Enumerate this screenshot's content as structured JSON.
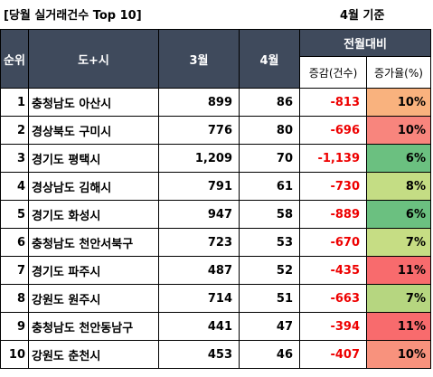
{
  "title": "[당월 실거래건수 Top 10]",
  "basis": "4월 기준",
  "headers": {
    "rank": "순위",
    "region": "도+시",
    "march": "3월",
    "april": "4월",
    "mom_group": "전월대비",
    "change_count": "증감(건수)",
    "change_rate": "증가율(%)"
  },
  "rows": [
    {
      "rank": "1",
      "region": "충청남도 아산시",
      "march": "899",
      "april": "86",
      "change": "-813",
      "rate": "10%",
      "rate_color": "#f9b27e"
    },
    {
      "rank": "2",
      "region": "경상북도 구미시",
      "march": "776",
      "april": "80",
      "change": "-696",
      "rate": "10%",
      "rate_color": "#f8857d"
    },
    {
      "rank": "3",
      "region": "경기도 평택시",
      "march": "1,209",
      "april": "70",
      "change": "-1,139",
      "rate": "6%",
      "rate_color": "#6bc080"
    },
    {
      "rank": "4",
      "region": "경상남도 김해시",
      "march": "791",
      "april": "61",
      "change": "-730",
      "rate": "8%",
      "rate_color": "#c4dd84"
    },
    {
      "rank": "5",
      "region": "경기도 화성시",
      "march": "947",
      "april": "58",
      "change": "-889",
      "rate": "6%",
      "rate_color": "#6bc080"
    },
    {
      "rank": "6",
      "region": "충청남도 천안서북구",
      "march": "723",
      "april": "53",
      "change": "-670",
      "rate": "7%",
      "rate_color": "#c6dd84"
    },
    {
      "rank": "7",
      "region": "경기도 파주시",
      "march": "487",
      "april": "52",
      "change": "-435",
      "rate": "11%",
      "rate_color": "#f86b6d"
    },
    {
      "rank": "8",
      "region": "강원도 원주시",
      "march": "714",
      "april": "51",
      "change": "-663",
      "rate": "7%",
      "rate_color": "#b6d680"
    },
    {
      "rank": "9",
      "region": "충청남도 천안동남구",
      "march": "441",
      "april": "47",
      "change": "-394",
      "rate": "11%",
      "rate_color": "#f86b6d"
    },
    {
      "rank": "10",
      "region": "강원도 춘천시",
      "march": "453",
      "april": "46",
      "change": "-407",
      "rate": "10%",
      "rate_color": "#f8927d"
    }
  ]
}
